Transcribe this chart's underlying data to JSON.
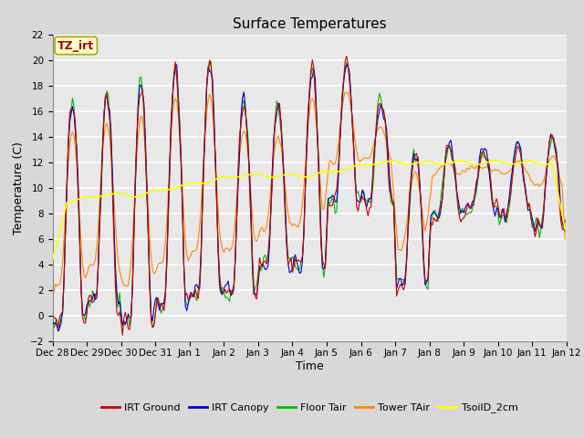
{
  "title": "Surface Temperatures",
  "ylabel": "Temperature (C)",
  "xlabel": "Time",
  "ylim": [
    -2,
    22
  ],
  "yticks": [
    -2,
    0,
    2,
    4,
    6,
    8,
    10,
    12,
    14,
    16,
    18,
    20,
    22
  ],
  "bg_color": "#d8d8d8",
  "plot_bg_color": "#e8e8e8",
  "annotation_text": "TZ_irt",
  "annotation_bg": "#ffffcc",
  "annotation_border": "#aaaa00",
  "annotation_text_color": "#aa0000",
  "series": {
    "IRT Ground": {
      "color": "#cc0000",
      "lw": 0.8
    },
    "IRT Canopy": {
      "color": "#0000cc",
      "lw": 0.8
    },
    "Floor Tair": {
      "color": "#00bb00",
      "lw": 0.8
    },
    "Tower TAir": {
      "color": "#ff8800",
      "lw": 0.8
    },
    "TsoilD_2cm": {
      "color": "#ffff00",
      "lw": 1.2
    }
  },
  "xtick_labels": [
    "Dec 28",
    "Dec 29",
    "Dec 30",
    "Dec 31",
    "Jan 1",
    "Jan 2",
    "Jan 3",
    "Jan 4",
    "Jan 5",
    "Jan 6",
    "Jan 7",
    "Jan 8",
    "Jan 9",
    "Jan 10",
    "Jan 11",
    "Jan 12"
  ],
  "title_fontsize": 11,
  "axis_fontsize": 9,
  "tick_fontsize": 7.5
}
